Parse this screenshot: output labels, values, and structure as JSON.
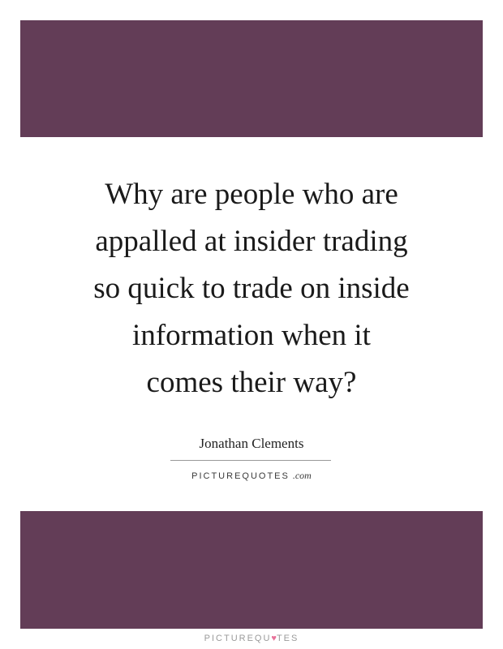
{
  "quote": {
    "lines": [
      "Why are people who are",
      "appalled at insider trading",
      "so quick to trade on inside",
      "information when it",
      "comes their way?"
    ]
  },
  "author": "Jonathan Clements",
  "brand": {
    "wordmark": "PICTUREQUOTES",
    "wordmark_suffix": ".com",
    "footer_before_heart": "PICTUREQU",
    "footer_after_heart": "TES",
    "heart_icon": "heart-icon"
  },
  "colors": {
    "band": "#633d57",
    "heart": "#e8729a"
  }
}
